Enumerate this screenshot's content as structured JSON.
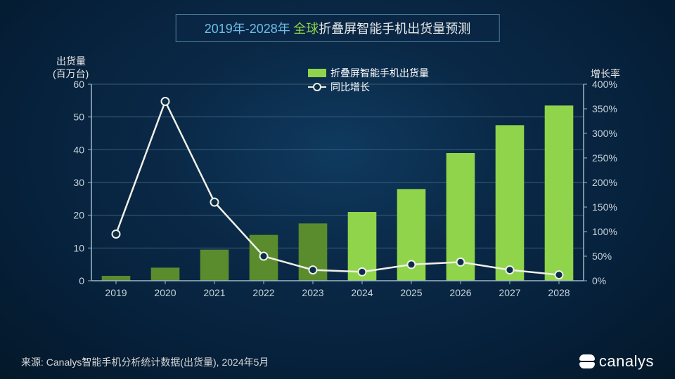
{
  "title": {
    "years": "2019年-2028年",
    "green": "全球",
    "rest": "折叠屏智能手机出货量预测"
  },
  "chart": {
    "type": "bar+line",
    "background_color": "transparent",
    "axis_color": "#9fb7c8",
    "grid_color": "#3a5e7a",
    "tick_color": "#c8d4dc",
    "tick_fontsize": 14,
    "label_fontsize": 14,
    "label_color": "#e8e8e8",
    "categories": [
      "2019",
      "2020",
      "2021",
      "2022",
      "2023",
      "2024",
      "2025",
      "2026",
      "2027",
      "2028"
    ],
    "y_left": {
      "label_line1": "出货量",
      "label_line2": "(百万台)",
      "min": 0,
      "max": 60,
      "step": 10
    },
    "y_right": {
      "label": "增长率",
      "min": 0,
      "max": 400,
      "step": 50,
      "suffix": "%"
    },
    "bars": {
      "values": [
        1.5,
        4,
        9.5,
        14,
        17.5,
        21,
        28,
        39,
        47.5,
        53.5
      ],
      "colors": [
        "#5a8c2e",
        "#5a8c2e",
        "#5a8c2e",
        "#5a8c2e",
        "#5a8c2e",
        "#8fd44a",
        "#8fd44a",
        "#8fd44a",
        "#8fd44a",
        "#8fd44a"
      ],
      "width": 0.58
    },
    "line": {
      "values": [
        95,
        365,
        160,
        50,
        22,
        18,
        33,
        38,
        22,
        12
      ],
      "color": "#f0f0e8",
      "width": 2.5,
      "marker_fill": "#0a2e4a",
      "marker_stroke": "#f0f0e8",
      "marker_radius": 5.5
    },
    "legend": {
      "items": [
        {
          "type": "bar",
          "label": "折叠屏智能手机出货量",
          "color": "#8fd44a"
        },
        {
          "type": "line",
          "label": "同比增长",
          "color": "#f0f0e8"
        }
      ],
      "fontsize": 14,
      "text_color": "#ffffff"
    }
  },
  "source": "来源: Canalys智能手机分析统计数据(出货量), 2024年5月",
  "logo_text": "canalys"
}
